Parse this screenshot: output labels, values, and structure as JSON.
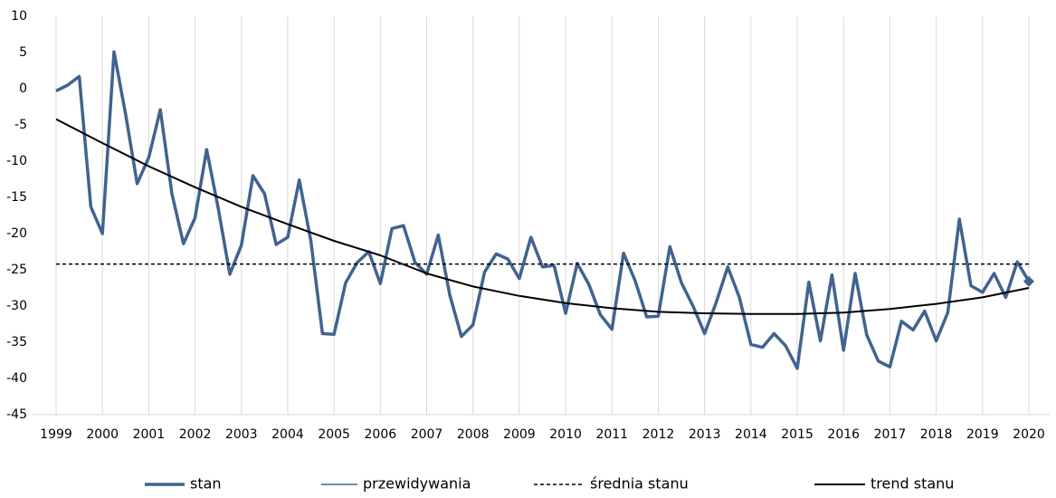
{
  "chart_data": {
    "type": "line",
    "xlim": [
      1999,
      2020
    ],
    "xticks": [
      1999,
      2000,
      2001,
      2002,
      2003,
      2004,
      2005,
      2006,
      2007,
      2008,
      2009,
      2010,
      2011,
      2012,
      2013,
      2014,
      2015,
      2016,
      2017,
      2018,
      2019,
      2020
    ],
    "ylim": [
      -45,
      10
    ],
    "yticks": [
      10,
      5,
      0,
      -5,
      -10,
      -15,
      -20,
      -25,
      -30,
      -35,
      -40,
      -45
    ],
    "grid": "x",
    "legend": "bottom",
    "series": [
      {
        "name": "stan",
        "color": "#41638f",
        "style": "solid-thick",
        "x": [
          1999,
          1999.25,
          1999.5,
          1999.75,
          2000,
          2000.25,
          2000.5,
          2000.75,
          2001,
          2001.25,
          2001.5,
          2001.75,
          2002,
          2002.25,
          2002.5,
          2002.75,
          2003,
          2003.25,
          2003.5,
          2003.75,
          2004,
          2004.25,
          2004.5,
          2004.75,
          2005,
          2005.25,
          2005.5,
          2005.75,
          2006,
          2006.25,
          2006.5,
          2006.75,
          2007,
          2007.25,
          2007.5,
          2007.75,
          2008,
          2008.25,
          2008.5,
          2008.75,
          2009,
          2009.25,
          2009.5,
          2009.75,
          2010,
          2010.25,
          2010.5,
          2010.75,
          2011,
          2011.25,
          2011.5,
          2011.75,
          2012,
          2012.25,
          2012.5,
          2012.75,
          2013,
          2013.25,
          2013.5,
          2013.75,
          2014,
          2014.25,
          2014.5,
          2014.75,
          2015,
          2015.25,
          2015.5,
          2015.75,
          2016,
          2016.25,
          2016.5,
          2016.75,
          2017,
          2017.25,
          2017.5,
          2017.75,
          2018,
          2018.25,
          2018.5,
          2018.75,
          2019,
          2019.25,
          2019.5,
          2019.75,
          2020
        ],
        "values": [
          -0.3,
          0.5,
          1.7,
          -16.3,
          -20,
          5.1,
          -3.5,
          -13.1,
          -9.5,
          -2.9,
          -14.5,
          -21.4,
          -17.8,
          -8.4,
          -16.5,
          -25.6,
          -21.6,
          -12,
          -14.5,
          -21.5,
          -20.5,
          -12.6,
          -21,
          -33.8,
          -33.9,
          -26.8,
          -24,
          -22.5,
          -26.9,
          -19.3,
          -18.9,
          -24,
          -25.6,
          -20.2,
          -28.5,
          -34.2,
          -32.6,
          -25.3,
          -22.8,
          -23.5,
          -26.2,
          -20.5,
          -24.6,
          -24.4,
          -31,
          -24.1,
          -27,
          -31.2,
          -33.2,
          -22.7,
          -26.5,
          -31.5,
          -31.4,
          -21.8,
          -26.8,
          -30,
          -33.8,
          -29.5,
          -24.6,
          -28.8,
          -35.3,
          -35.7,
          -33.8,
          -35.5,
          -38.6,
          -26.7,
          -34.8,
          -25.7,
          -36.1,
          -25.5,
          -34,
          -37.6,
          -38.4,
          -32.1,
          -33.3,
          -30.7,
          -34.8,
          -30.9,
          -18,
          -27.2,
          -28.1,
          -25.5,
          -28.8,
          -23.9,
          -26.6
        ]
      },
      {
        "name": "przewidywania",
        "color": "#41638f",
        "style": "solid-thin-marker",
        "x": [
          2020
        ],
        "values": [
          -26.6
        ]
      },
      {
        "name": "średnia stanu",
        "color": "#000000",
        "style": "dashed",
        "x": [
          1999,
          2020
        ],
        "values": [
          -24.2,
          -24.2
        ]
      },
      {
        "name": "trend stanu",
        "color": "#000000",
        "style": "solid",
        "x": [
          1999,
          2000,
          2001,
          2002,
          2003,
          2004,
          2005,
          2006,
          2007,
          2008,
          2009,
          2010,
          2011,
          2012,
          2013,
          2014,
          2015,
          2016,
          2017,
          2018,
          2019,
          2020
        ],
        "values": [
          -4.2,
          -7.5,
          -10.7,
          -13.6,
          -16.3,
          -18.7,
          -21.0,
          -23.0,
          -25.5,
          -27.3,
          -28.6,
          -29.6,
          -30.3,
          -30.8,
          -31.0,
          -31.1,
          -31.1,
          -30.9,
          -30.4,
          -29.7,
          -28.8,
          -27.5
        ]
      }
    ]
  }
}
